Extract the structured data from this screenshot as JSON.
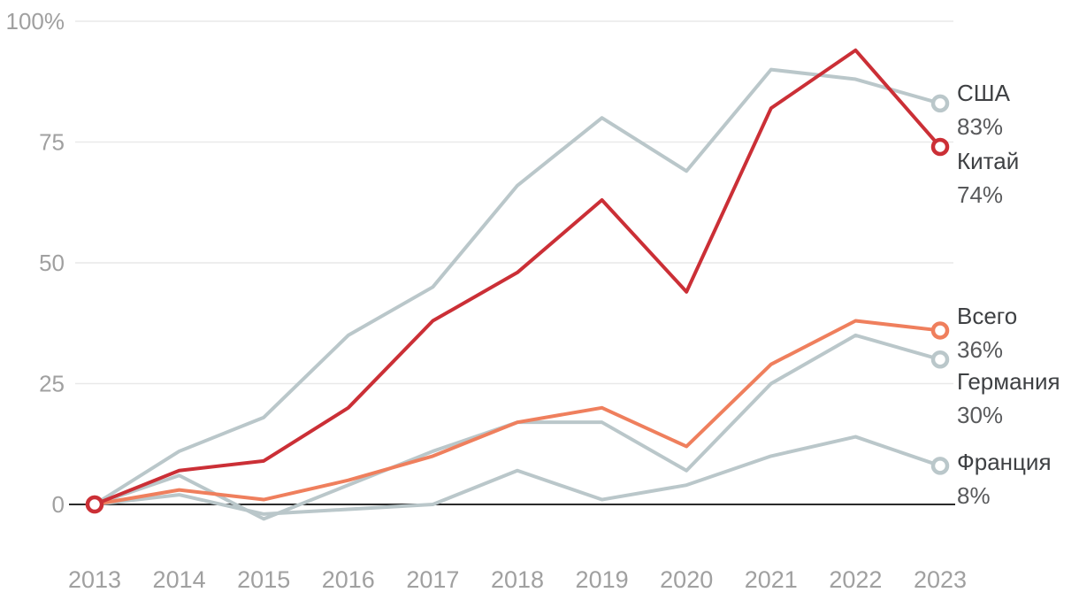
{
  "chart_data": {
    "type": "line",
    "title": "",
    "xlabel": "",
    "ylabel": "",
    "x_categories": [
      "2013",
      "2014",
      "2015",
      "2016",
      "2017",
      "2018",
      "2019",
      "2020",
      "2021",
      "2022",
      "2023"
    ],
    "y_axis": {
      "tick_labels": [
        "100%",
        "75",
        "50",
        "25",
        "0"
      ],
      "tick_values": [
        100,
        75,
        50,
        25,
        0
      ],
      "range": [
        -5,
        100
      ],
      "grid": true,
      "zero_baseline": true
    },
    "legend_position": "right-end-labels",
    "series": [
      {
        "name": "США",
        "end_value_label": "83%",
        "color": "#bac7ca",
        "values": [
          0,
          11,
          18,
          35,
          45,
          66,
          80,
          69,
          90,
          88,
          83
        ]
      },
      {
        "name": "Китай",
        "end_value_label": "74%",
        "color": "#cb2f36",
        "values": [
          0,
          7,
          9,
          20,
          38,
          48,
          63,
          44,
          82,
          94,
          74
        ]
      },
      {
        "name": "Всего",
        "end_value_label": "36%",
        "color": "#ef7f5d",
        "values": [
          0,
          3,
          1,
          5,
          10,
          17,
          20,
          12,
          29,
          38,
          36
        ]
      },
      {
        "name": "Германия",
        "end_value_label": "30%",
        "color": "#bac7ca",
        "values": [
          0,
          6,
          -3,
          4,
          11,
          17,
          17,
          7,
          25,
          35,
          30
        ]
      },
      {
        "name": "Франция",
        "end_value_label": "8%",
        "color": "#bac7ca",
        "values": [
          0,
          2,
          -2,
          -1,
          0,
          7,
          1,
          4,
          10,
          14,
          8
        ]
      }
    ],
    "start_markers": [
      "Всего",
      "Китай"
    ],
    "end_markers": "all"
  },
  "colors": {
    "background": "#ffffff",
    "gridline": "#e9e9e9",
    "zero_line": "#2b2b2b",
    "axis_text": "#a0a0a0",
    "label_name_text": "#3e4043",
    "label_value_text": "#58595b",
    "marker_fill": "#ffffff"
  }
}
